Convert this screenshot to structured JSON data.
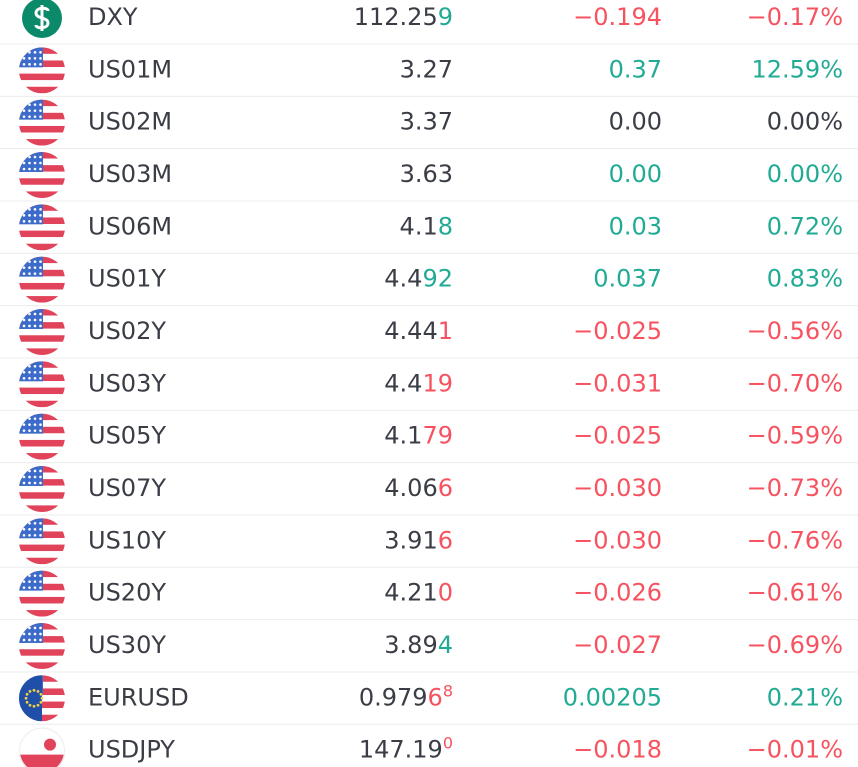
{
  "rows": [
    {
      "symbol": "DXY",
      "icon": "dollar",
      "last": [
        {
          "text": "112.25"
        },
        {
          "text": "9",
          "color": "#22ab94"
        }
      ],
      "change": "−0.194",
      "change_pct": "−0.17%",
      "color": "#f7525f"
    },
    {
      "symbol": "US01M",
      "icon": "us",
      "last": [
        {
          "text": "3.27"
        }
      ],
      "change": "0.37",
      "change_pct": "12.59%",
      "color": "#22ab94"
    },
    {
      "symbol": "US02M",
      "icon": "us",
      "last": [
        {
          "text": "3.37"
        }
      ],
      "change": "0.00",
      "change_pct": "0.00%",
      "color": "#3a3d45"
    },
    {
      "symbol": "US03M",
      "icon": "us",
      "last": [
        {
          "text": "3.63"
        }
      ],
      "change": "0.00",
      "change_pct": "0.00%",
      "color": "#22ab94"
    },
    {
      "symbol": "US06M",
      "icon": "us",
      "last": [
        {
          "text": "4.1"
        },
        {
          "text": "8",
          "color": "#22ab94"
        }
      ],
      "change": "0.03",
      "change_pct": "0.72%",
      "color": "#22ab94"
    },
    {
      "symbol": "US01Y",
      "icon": "us",
      "last": [
        {
          "text": "4.4"
        },
        {
          "text": "92",
          "color": "#22ab94"
        }
      ],
      "change": "0.037",
      "change_pct": "0.83%",
      "color": "#22ab94"
    },
    {
      "symbol": "US02Y",
      "icon": "us",
      "last": [
        {
          "text": "4.44"
        },
        {
          "text": "1",
          "color": "#f7525f"
        }
      ],
      "change": "−0.025",
      "change_pct": "−0.56%",
      "color": "#f7525f"
    },
    {
      "symbol": "US03Y",
      "icon": "us",
      "last": [
        {
          "text": "4.4"
        },
        {
          "text": "19",
          "color": "#f7525f"
        }
      ],
      "change": "−0.031",
      "change_pct": "−0.70%",
      "color": "#f7525f"
    },
    {
      "symbol": "US05Y",
      "icon": "us",
      "last": [
        {
          "text": "4.1"
        },
        {
          "text": "79",
          "color": "#f7525f"
        }
      ],
      "change": "−0.025",
      "change_pct": "−0.59%",
      "color": "#f7525f"
    },
    {
      "symbol": "US07Y",
      "icon": "us",
      "last": [
        {
          "text": "4.06"
        },
        {
          "text": "6",
          "color": "#f7525f"
        }
      ],
      "change": "−0.030",
      "change_pct": "−0.73%",
      "color": "#f7525f"
    },
    {
      "symbol": "US10Y",
      "icon": "us",
      "last": [
        {
          "text": "3.91"
        },
        {
          "text": "6",
          "color": "#f7525f"
        }
      ],
      "change": "−0.030",
      "change_pct": "−0.76%",
      "color": "#f7525f"
    },
    {
      "symbol": "US20Y",
      "icon": "us",
      "last": [
        {
          "text": "4.21"
        },
        {
          "text": "0",
          "color": "#f7525f"
        }
      ],
      "change": "−0.026",
      "change_pct": "−0.61%",
      "color": "#f7525f"
    },
    {
      "symbol": "US30Y",
      "icon": "us",
      "last": [
        {
          "text": "3.89"
        },
        {
          "text": "4",
          "color": "#22ab94"
        }
      ],
      "change": "−0.027",
      "change_pct": "−0.69%",
      "color": "#f7525f"
    },
    {
      "symbol": "EURUSD",
      "icon": "eu-us",
      "last": [
        {
          "text": "0.979"
        },
        {
          "text": "6",
          "color": "#f7525f"
        },
        {
          "text": "8",
          "color": "#f7525f",
          "sup": true
        }
      ],
      "change": "0.00205",
      "change_pct": "0.21%",
      "color": "#22ab94"
    },
    {
      "symbol": "USDJPY",
      "icon": "us-jp",
      "last": [
        {
          "text": "147.19"
        },
        {
          "text": "0",
          "color": "#f7525f",
          "sup": true
        }
      ],
      "change": "−0.018",
      "change_pct": "−0.01%",
      "color": "#f7525f"
    }
  ]
}
